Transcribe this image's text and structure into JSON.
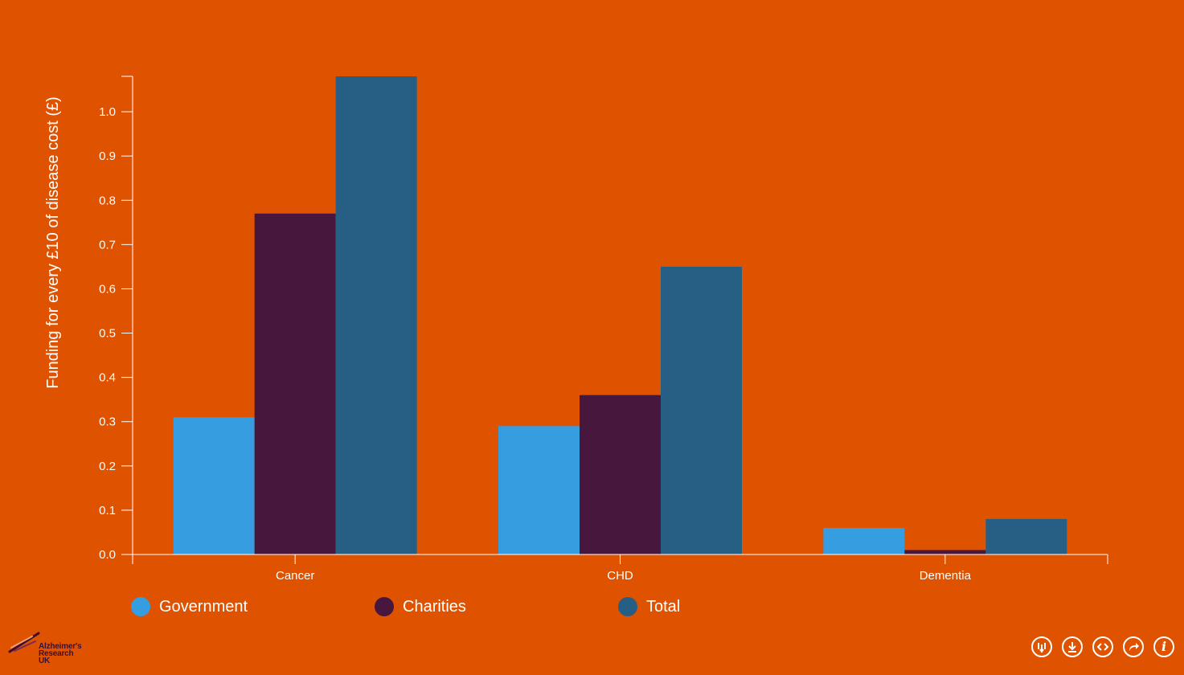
{
  "chart_data": {
    "type": "bar",
    "title": "",
    "xlabel": "",
    "ylabel": "Funding for every £10 of disease cost (£)",
    "categories": [
      "Cancer",
      "CHD",
      "Dementia"
    ],
    "series": [
      {
        "name": "Government",
        "color": "#369de0",
        "values": [
          0.31,
          0.29,
          0.06
        ]
      },
      {
        "name": "Charities",
        "color": "#48173e",
        "values": [
          0.77,
          0.36,
          0.01
        ]
      },
      {
        "name": "Total",
        "color": "#275e84",
        "values": [
          1.08,
          0.65,
          0.08
        ]
      }
    ],
    "ylim": [
      0,
      1.08
    ],
    "yticks": [
      "0.0",
      "0.1",
      "0.2",
      "0.3",
      "0.4",
      "0.5",
      "0.6",
      "0.7",
      "0.8",
      "0.9",
      "1.0"
    ],
    "grid": false,
    "legend_position": "bottom-left"
  },
  "legend": [
    {
      "name": "Government",
      "color": "#369de0"
    },
    {
      "name": "Charities",
      "color": "#48173e"
    },
    {
      "name": "Total",
      "color": "#275e84"
    }
  ],
  "logo": {
    "line1": "Alzheimer's",
    "line2": "Research",
    "line3": "UK"
  },
  "toolbar": {
    "icons": [
      "sort-chart-icon",
      "download-icon",
      "embed-code-icon",
      "share-icon",
      "info-icon"
    ]
  },
  "colors": {
    "background": "#df5200",
    "axis": "#ffffff",
    "text": "#ffffff"
  }
}
